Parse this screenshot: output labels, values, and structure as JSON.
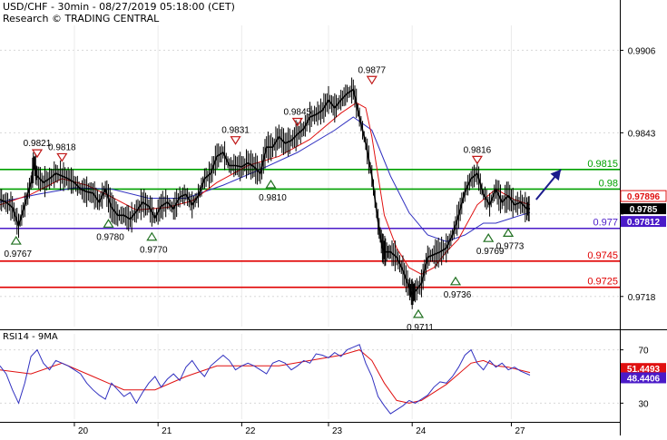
{
  "header": {
    "title": "USD/CHF - 30min - 08/27/2019 05:18:00 (CET)",
    "credit": "Research © TRADING CENTRAL"
  },
  "colors": {
    "background": "#ffffff",
    "resistance": "#00a000",
    "pivot": "#4a1ac8",
    "support": "#e00000",
    "price": "#000000",
    "ma_fast": "#e01010",
    "ma_slow": "#3030c0",
    "arrow": "#1a1a8c",
    "marker": "#c01818",
    "marker_up": "#207020",
    "last_price_bg": "#000000",
    "last_price_red_bg": "#e01010",
    "last_price_blue_bg": "#4a1ac8",
    "grid": "#d8d8d8"
  },
  "chart_data": [
    {
      "type": "line",
      "name": "price",
      "ylim": [
        0.9695,
        0.9925
      ],
      "yticks": [
        0.9718,
        0.9781,
        0.9843,
        0.9906
      ],
      "yticklabels": [
        "0.9718",
        "",
        "0.9843",
        "0.9906"
      ],
      "xticklabels": [
        "20",
        "21",
        "22",
        "23",
        "24",
        "27"
      ],
      "xlim": [
        0,
        100
      ],
      "xticks": [
        12.0,
        25.5,
        39.0,
        53.0,
        66.5,
        82.5
      ],
      "grid": true,
      "price_path": {
        "x": [
          0,
          1,
          2,
          3,
          4,
          5,
          5.5,
          6,
          7,
          8,
          9,
          10,
          11,
          12,
          13,
          14,
          15,
          16,
          17,
          18,
          19,
          20,
          21,
          22,
          23,
          24,
          25,
          26,
          27,
          28,
          29,
          30,
          31,
          32,
          33,
          34,
          35,
          36,
          37,
          38,
          39,
          40,
          41,
          42,
          43,
          44,
          45,
          46,
          47,
          48,
          49,
          50,
          51,
          52,
          53,
          54,
          55,
          56,
          57,
          58,
          59,
          60,
          61,
          61.7,
          62.2,
          63,
          64,
          65,
          66,
          66.5,
          67,
          68,
          69,
          70,
          71,
          72,
          73,
          74,
          75,
          76,
          77,
          78,
          79,
          80,
          81,
          82,
          83,
          84,
          85,
          85.5
        ],
        "y": [
          0.9792,
          0.979,
          0.9786,
          0.9772,
          0.9788,
          0.9805,
          0.982,
          0.981,
          0.9805,
          0.9808,
          0.9812,
          0.981,
          0.9808,
          0.9805,
          0.98,
          0.9798,
          0.9797,
          0.979,
          0.98,
          0.9786,
          0.978,
          0.978,
          0.9777,
          0.9783,
          0.979,
          0.9787,
          0.9778,
          0.9787,
          0.979,
          0.9785,
          0.9794,
          0.9796,
          0.9788,
          0.9795,
          0.9808,
          0.9812,
          0.9825,
          0.9828,
          0.9818,
          0.9818,
          0.9817,
          0.982,
          0.9817,
          0.9812,
          0.9832,
          0.9832,
          0.984,
          0.9835,
          0.9837,
          0.9842,
          0.9846,
          0.9855,
          0.9857,
          0.986,
          0.9868,
          0.9862,
          0.9868,
          0.9873,
          0.9876,
          0.9855,
          0.9835,
          0.981,
          0.9775,
          0.9755,
          0.9752,
          0.9752,
          0.9748,
          0.9738,
          0.9725,
          0.972,
          0.9722,
          0.9728,
          0.9748,
          0.975,
          0.9752,
          0.9755,
          0.9765,
          0.978,
          0.9798,
          0.9808,
          0.9812,
          0.9796,
          0.9788,
          0.98,
          0.979,
          0.9795,
          0.9788,
          0.979,
          0.9785,
          0.9785
        ]
      },
      "ma_fast": {
        "x": [
          0,
          5,
          10,
          14,
          18,
          22,
          27,
          31,
          35,
          40,
          45,
          50,
          55,
          57.5,
          59,
          60,
          62,
          64,
          66,
          68,
          70,
          72,
          74,
          77,
          80,
          83,
          85.5
        ],
        "y": [
          0.9788,
          0.9796,
          0.9808,
          0.9803,
          0.9794,
          0.9784,
          0.9786,
          0.9791,
          0.9805,
          0.9818,
          0.9825,
          0.9838,
          0.9858,
          0.9866,
          0.9862,
          0.984,
          0.978,
          0.9755,
          0.974,
          0.9735,
          0.974,
          0.9752,
          0.9762,
          0.9788,
          0.98,
          0.9792,
          0.9788
        ]
      },
      "ma_slow": {
        "x": [
          0,
          6,
          12,
          18,
          24,
          30,
          36,
          42,
          48,
          54,
          57,
          60,
          63,
          66,
          69,
          72,
          75,
          78,
          80,
          82,
          84,
          85.5
        ],
        "y": [
          0.979,
          0.9796,
          0.9801,
          0.98,
          0.9793,
          0.9793,
          0.9803,
          0.9815,
          0.9828,
          0.9845,
          0.9855,
          0.9845,
          0.981,
          0.9782,
          0.9765,
          0.976,
          0.9765,
          0.9774,
          0.9774,
          0.9777,
          0.978,
          0.9782
        ]
      },
      "levels": [
        {
          "role": "resistance",
          "value": 0.9815,
          "label": "0.9815"
        },
        {
          "role": "resistance",
          "value": 0.98,
          "label": "0.98"
        },
        {
          "role": "pivot",
          "value": 0.977,
          "label": "0.977"
        },
        {
          "role": "support",
          "value": 0.9745,
          "label": "0.9745"
        },
        {
          "role": "support",
          "value": 0.9725,
          "label": "0.9725"
        }
      ],
      "markers": [
        {
          "kind": "down",
          "x": 6.0,
          "y": 0.9821,
          "label": "0.9821"
        },
        {
          "kind": "down",
          "x": 10.0,
          "y": 0.9818,
          "label": "0.9818"
        },
        {
          "kind": "down",
          "x": 38.0,
          "y": 0.9831,
          "label": "0.9831"
        },
        {
          "kind": "down",
          "x": 48.0,
          "y": 0.9845,
          "label": "0.9845"
        },
        {
          "kind": "down",
          "x": 60.0,
          "y": 0.9877,
          "label": "0.9877"
        },
        {
          "kind": "down",
          "x": 77.0,
          "y": 0.9816,
          "label": "0.9816"
        },
        {
          "kind": "up",
          "x": 2.6,
          "y": 0.9767,
          "label": "0.9767"
        },
        {
          "kind": "up",
          "x": 17.5,
          "y": 0.978,
          "label": "0.9780"
        },
        {
          "kind": "up",
          "x": 24.5,
          "y": 0.977,
          "label": "0.9770"
        },
        {
          "kind": "up",
          "x": 43.7,
          "y": 0.981,
          "label": "0.9810"
        },
        {
          "kind": "up",
          "x": 67.5,
          "y": 0.9711,
          "label": "0.9711"
        },
        {
          "kind": "up",
          "x": 73.5,
          "y": 0.9736,
          "label": "0.9736"
        },
        {
          "kind": "up",
          "x": 78.8,
          "y": 0.9769,
          "label": "0.9769"
        },
        {
          "kind": "up",
          "x": 82.0,
          "y": 0.9773,
          "label": "0.9773"
        }
      ],
      "forecast_arrow": {
        "from": {
          "x": 86.5,
          "y": 0.9792
        },
        "to": {
          "x": 90.5,
          "y": 0.9815
        }
      },
      "last_values": [
        {
          "label": "0.97896",
          "style": "red"
        },
        {
          "label": "0.9785",
          "style": "black"
        },
        {
          "label": "0.97812",
          "style": "blue"
        }
      ]
    },
    {
      "type": "line",
      "name": "RSI14 - 9MA",
      "title": "RSI14 - 9MA",
      "ylim": [
        18,
        82
      ],
      "yticks": [
        30,
        70
      ],
      "yticklabels": [
        "30",
        "70"
      ],
      "grid": true,
      "rsi": {
        "x": [
          0,
          1,
          2,
          3,
          4,
          5,
          6,
          7,
          8,
          9,
          10,
          11,
          12,
          13,
          14,
          15,
          16,
          17,
          18,
          19,
          20,
          21,
          22,
          23,
          24,
          25,
          26,
          27,
          28,
          29,
          30,
          31,
          32,
          33,
          34,
          35,
          36,
          37,
          38,
          39,
          40,
          41,
          42,
          43,
          44,
          45,
          46,
          47,
          48,
          49,
          50,
          51,
          52,
          53,
          54,
          55,
          56,
          57,
          58,
          59,
          60,
          61,
          62,
          63,
          64,
          65,
          66,
          67,
          68,
          69,
          70,
          71,
          72,
          73,
          74,
          75,
          76,
          77,
          78,
          79,
          80,
          81,
          82,
          83,
          84,
          85.5
        ],
        "y": [
          58,
          52,
          40,
          30,
          45,
          65,
          70,
          60,
          55,
          62,
          60,
          58,
          55,
          52,
          45,
          40,
          36,
          33,
          45,
          40,
          35,
          38,
          30,
          38,
          45,
          50,
          42,
          48,
          52,
          47,
          57,
          62,
          55,
          50,
          58,
          62,
          66,
          62,
          55,
          58,
          60,
          58,
          55,
          52,
          60,
          62,
          60,
          55,
          58,
          62,
          60,
          67,
          66,
          64,
          68,
          65,
          70,
          72,
          74,
          60,
          50,
          35,
          28,
          22,
          25,
          28,
          32,
          30,
          33,
          36,
          42,
          46,
          45,
          50,
          57,
          66,
          70,
          60,
          55,
          62,
          57,
          60,
          55,
          57,
          54,
          51
        ]
      },
      "rsi_ma": {
        "x": [
          0,
          5,
          10,
          15,
          20,
          25,
          30,
          35,
          40,
          45,
          50,
          55,
          58,
          60,
          62,
          64,
          66,
          68,
          70,
          72,
          74,
          76,
          78,
          80,
          82,
          85.5
        ],
        "y": [
          55,
          52,
          60,
          50,
          40,
          40,
          50,
          58,
          58,
          58,
          62,
          66,
          70,
          62,
          45,
          32,
          30,
          32,
          38,
          44,
          52,
          60,
          62,
          58,
          57,
          53
        ]
      },
      "last_values": [
        {
          "label": "51.4493",
          "style": "red"
        },
        {
          "label": "48.4406",
          "style": "blue"
        }
      ]
    }
  ]
}
